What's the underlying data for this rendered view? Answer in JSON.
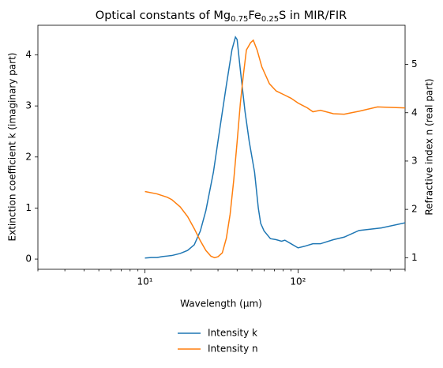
{
  "chart_data": {
    "type": "line",
    "title": "Optical constants of Mg0.75Fe0.25S in MIR/FIR",
    "xlabel": "Wavelength (μm)",
    "ylabel": "Extinction coefficient k (imaginary part)",
    "y2label": "Refractive index n (real part)",
    "xscale": "log",
    "xlim": [
      2,
      500
    ],
    "xticks": [
      {
        "value": 10,
        "label": "10¹"
      },
      {
        "value": 100,
        "label": "10²"
      }
    ],
    "xminorticks": [
      2,
      3,
      4,
      5,
      6,
      7,
      8,
      9,
      20,
      30,
      40,
      50,
      60,
      70,
      80,
      90,
      200,
      300,
      400,
      500
    ],
    "ylim": [
      -0.2,
      4.58
    ],
    "yticks": [
      0,
      1,
      2,
      3,
      4
    ],
    "y2lim": [
      0.76,
      5.81
    ],
    "y2ticks": [
      1,
      2,
      3,
      4,
      5
    ],
    "legend": "bottom",
    "series": [
      {
        "name": "Intensity k",
        "color": "#1f77b4",
        "x": [
          10,
          11,
          12,
          13,
          14,
          15,
          17,
          19,
          21,
          23,
          25,
          28,
          31,
          34,
          37,
          39,
          40,
          42,
          45,
          48,
          52,
          55,
          57,
          60,
          66,
          72,
          78,
          82,
          90,
          100,
          110,
          125,
          140,
          170,
          200,
          250,
          350,
          500
        ],
        "values": [
          0.02,
          0.03,
          0.03,
          0.05,
          0.06,
          0.07,
          0.11,
          0.17,
          0.28,
          0.55,
          0.95,
          1.7,
          2.6,
          3.4,
          4.1,
          4.35,
          4.3,
          3.7,
          2.9,
          2.3,
          1.7,
          1.0,
          0.7,
          0.55,
          0.4,
          0.38,
          0.35,
          0.37,
          0.3,
          0.22,
          0.25,
          0.3,
          0.3,
          0.38,
          0.43,
          0.56,
          0.61,
          0.71
        ]
      },
      {
        "name": "Intensity n",
        "color": "#ff7f0e",
        "axis": "y2",
        "x": [
          10,
          12,
          14,
          15,
          17,
          19,
          21,
          23,
          25,
          27,
          28.5,
          30,
          32,
          34,
          36,
          38,
          40,
          42,
          44,
          46,
          49,
          51,
          54,
          58,
          65,
          72,
          80,
          90,
          100,
          115,
          125,
          140,
          170,
          200,
          250,
          330,
          400,
          500
        ],
        "values": [
          2.37,
          2.32,
          2.25,
          2.2,
          2.05,
          1.85,
          1.6,
          1.35,
          1.15,
          1.03,
          1.0,
          1.02,
          1.1,
          1.4,
          1.9,
          2.6,
          3.4,
          4.2,
          4.8,
          5.3,
          5.45,
          5.5,
          5.3,
          4.95,
          4.6,
          4.45,
          4.38,
          4.3,
          4.2,
          4.1,
          4.02,
          4.05,
          3.98,
          3.97,
          4.03,
          4.12,
          4.11,
          4.1
        ]
      }
    ]
  }
}
